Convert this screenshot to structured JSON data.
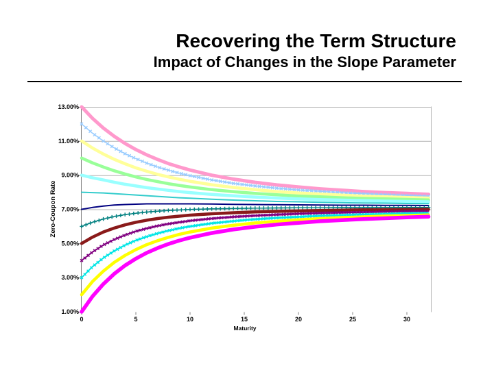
{
  "slide": {
    "title": "Recovering the Term Structure",
    "subtitle": "Impact of Changes in the Slope Parameter"
  },
  "chart_data": {
    "type": "line",
    "title": "",
    "xlabel": "Maturity",
    "ylabel": "Zero-Coupon Rate",
    "legend": "none",
    "grid": "horizontal, upper half only",
    "xlim": [
      0,
      32.2
    ],
    "ylim": [
      1,
      13
    ],
    "x_tick_values": [
      0,
      5,
      10,
      15,
      20,
      25,
      30
    ],
    "x_tick_labels": [
      "0",
      "5",
      "10",
      "15",
      "20",
      "25",
      "30"
    ],
    "y_tick_values": [
      13,
      11,
      9,
      7,
      5,
      3,
      1
    ],
    "y_tick_labels": [
      "13.00%",
      "11.00%",
      "9.00%",
      "7.00%",
      "5.00%",
      "3.00%",
      "1.00%"
    ],
    "y_gridline_values": [
      13,
      11,
      9,
      7
    ],
    "axis_color": "#808080",
    "grid_color": "#b3b3b3",
    "text_color": "#000000",
    "x": [
      0,
      1,
      2,
      3,
      4,
      5,
      6,
      7,
      8,
      9,
      10,
      12,
      14,
      16,
      18,
      20,
      22,
      24,
      26,
      28,
      30,
      32
    ],
    "series": [
      {
        "name": "starts at 13.00%",
        "color": "#FF99CC",
        "width": 5,
        "marker": "none",
        "marker_step": 0,
        "marker_size": 0,
        "values": [
          13.0,
          12.33,
          11.76,
          11.28,
          10.86,
          10.5,
          10.19,
          9.92,
          9.68,
          9.48,
          9.3,
          9.0,
          8.77,
          8.58,
          8.43,
          8.31,
          8.2,
          8.12,
          8.04,
          7.98,
          7.93,
          7.88
        ]
      },
      {
        "name": "starts at 12.00%",
        "color": "#99CCFF",
        "width": 1.5,
        "marker": "cross",
        "marker_step": 0.4,
        "marker_size": 5.5,
        "values": [
          12.0,
          11.46,
          11.0,
          10.6,
          10.26,
          9.97,
          9.71,
          9.48,
          9.29,
          9.12,
          8.97,
          8.72,
          8.52,
          8.37,
          8.24,
          8.13,
          8.05,
          7.97,
          7.91,
          7.86,
          7.81,
          7.77
        ]
      },
      {
        "name": "starts at 11.00%",
        "color": "#FFFF99",
        "width": 4.5,
        "marker": "none",
        "marker_step": 0,
        "marker_size": 0,
        "values": [
          11.0,
          10.59,
          10.24,
          9.93,
          9.67,
          9.43,
          9.23,
          9.05,
          8.9,
          8.76,
          8.64,
          8.44,
          8.28,
          8.15,
          8.04,
          7.96,
          7.89,
          7.83,
          7.77,
          7.73,
          7.69,
          7.66
        ]
      },
      {
        "name": "starts at 10.00%",
        "color": "#99FF99",
        "width": 4.5,
        "marker": "none",
        "marker_step": 0,
        "marker_size": 0,
        "values": [
          10.0,
          9.72,
          9.48,
          9.26,
          9.07,
          8.9,
          8.75,
          8.62,
          8.5,
          8.4,
          8.31,
          8.15,
          8.03,
          7.93,
          7.85,
          7.78,
          7.73,
          7.68,
          7.64,
          7.61,
          7.58,
          7.55
        ]
      },
      {
        "name": "starts at 9.00%",
        "color": "#99FFFF",
        "width": 4.5,
        "marker": "none",
        "marker_step": 0,
        "marker_size": 0,
        "values": [
          9.0,
          8.85,
          8.72,
          8.59,
          8.47,
          8.37,
          8.27,
          8.19,
          8.11,
          8.04,
          7.98,
          7.87,
          7.79,
          7.72,
          7.66,
          7.61,
          7.57,
          7.54,
          7.51,
          7.48,
          7.46,
          7.44
        ]
      },
      {
        "name": "starts at 8.00%",
        "color": "#33CCCC",
        "width": 2,
        "marker": "none",
        "marker_step": 0,
        "marker_size": 0,
        "values": [
          8.0,
          7.98,
          7.96,
          7.92,
          7.88,
          7.84,
          7.8,
          7.76,
          7.72,
          7.68,
          7.65,
          7.59,
          7.54,
          7.5,
          7.46,
          7.44,
          7.41,
          7.39,
          7.37,
          7.36,
          7.34,
          7.33
        ]
      },
      {
        "name": "starts at 7.00%",
        "color": "#000080",
        "width": 2,
        "marker": "none",
        "marker_step": 0,
        "marker_size": 0,
        "values": [
          7.0,
          7.11,
          7.19,
          7.25,
          7.28,
          7.3,
          7.32,
          7.32,
          7.32,
          7.32,
          7.32,
          7.31,
          7.29,
          7.28,
          7.27,
          7.26,
          7.25,
          7.24,
          7.24,
          7.23,
          7.23,
          7.22
        ]
      },
      {
        "name": "starts at 6.00%",
        "color": "#008080",
        "width": 1.5,
        "marker": "plus",
        "marker_step": 0.4,
        "marker_size": 5.5,
        "values": [
          6.0,
          6.24,
          6.43,
          6.58,
          6.69,
          6.77,
          6.84,
          6.89,
          6.93,
          6.96,
          6.99,
          7.03,
          7.05,
          7.07,
          7.08,
          7.09,
          7.09,
          7.1,
          7.1,
          7.11,
          7.11,
          7.11
        ]
      },
      {
        "name": "starts at 5.00%",
        "color": "#8A1A1A",
        "width": 4.5,
        "marker": "none",
        "marker_step": 0,
        "marker_size": 0,
        "values": [
          5.0,
          5.37,
          5.67,
          5.9,
          6.09,
          6.24,
          6.36,
          6.46,
          6.54,
          6.6,
          6.66,
          6.74,
          6.8,
          6.85,
          6.88,
          6.91,
          6.93,
          6.95,
          6.97,
          6.98,
          6.99,
          7.0
        ]
      },
      {
        "name": "starts at 4.00%",
        "color": "#800080",
        "width": 2,
        "marker": "cross",
        "marker_step": 0.3,
        "marker_size": 5,
        "values": [
          4.0,
          4.5,
          4.91,
          5.23,
          5.49,
          5.71,
          5.88,
          6.03,
          6.15,
          6.24,
          6.33,
          6.46,
          6.56,
          6.63,
          6.69,
          6.74,
          6.78,
          6.81,
          6.83,
          6.86,
          6.88,
          6.89
        ]
      },
      {
        "name": "starts at 3.00%",
        "color": "#00E5E5",
        "width": 2,
        "marker": "cross",
        "marker_step": 0.3,
        "marker_size": 5,
        "values": [
          3.0,
          3.64,
          4.15,
          4.56,
          4.9,
          5.18,
          5.4,
          5.59,
          5.75,
          5.89,
          6.0,
          6.18,
          6.31,
          6.42,
          6.5,
          6.56,
          6.62,
          6.66,
          6.7,
          6.73,
          6.76,
          6.78
        ]
      },
      {
        "name": "starts at 2.00%",
        "color": "#FFFF00",
        "width": 4.5,
        "marker": "none",
        "marker_step": 0,
        "marker_size": 0,
        "values": [
          2.0,
          2.77,
          3.38,
          3.89,
          4.3,
          4.64,
          4.93,
          5.16,
          5.36,
          5.53,
          5.67,
          5.9,
          6.07,
          6.2,
          6.3,
          6.39,
          6.46,
          6.52,
          6.56,
          6.61,
          6.64,
          6.67
        ]
      },
      {
        "name": "starts at 1.00%",
        "color": "#FF00FF",
        "width": 5.5,
        "marker": "none",
        "marker_step": 0,
        "marker_size": 0,
        "values": [
          1.0,
          1.9,
          2.62,
          3.22,
          3.71,
          4.11,
          4.45,
          4.73,
          4.97,
          5.17,
          5.34,
          5.61,
          5.82,
          5.98,
          6.11,
          6.21,
          6.3,
          6.37,
          6.43,
          6.48,
          6.53,
          6.57
        ]
      }
    ]
  }
}
